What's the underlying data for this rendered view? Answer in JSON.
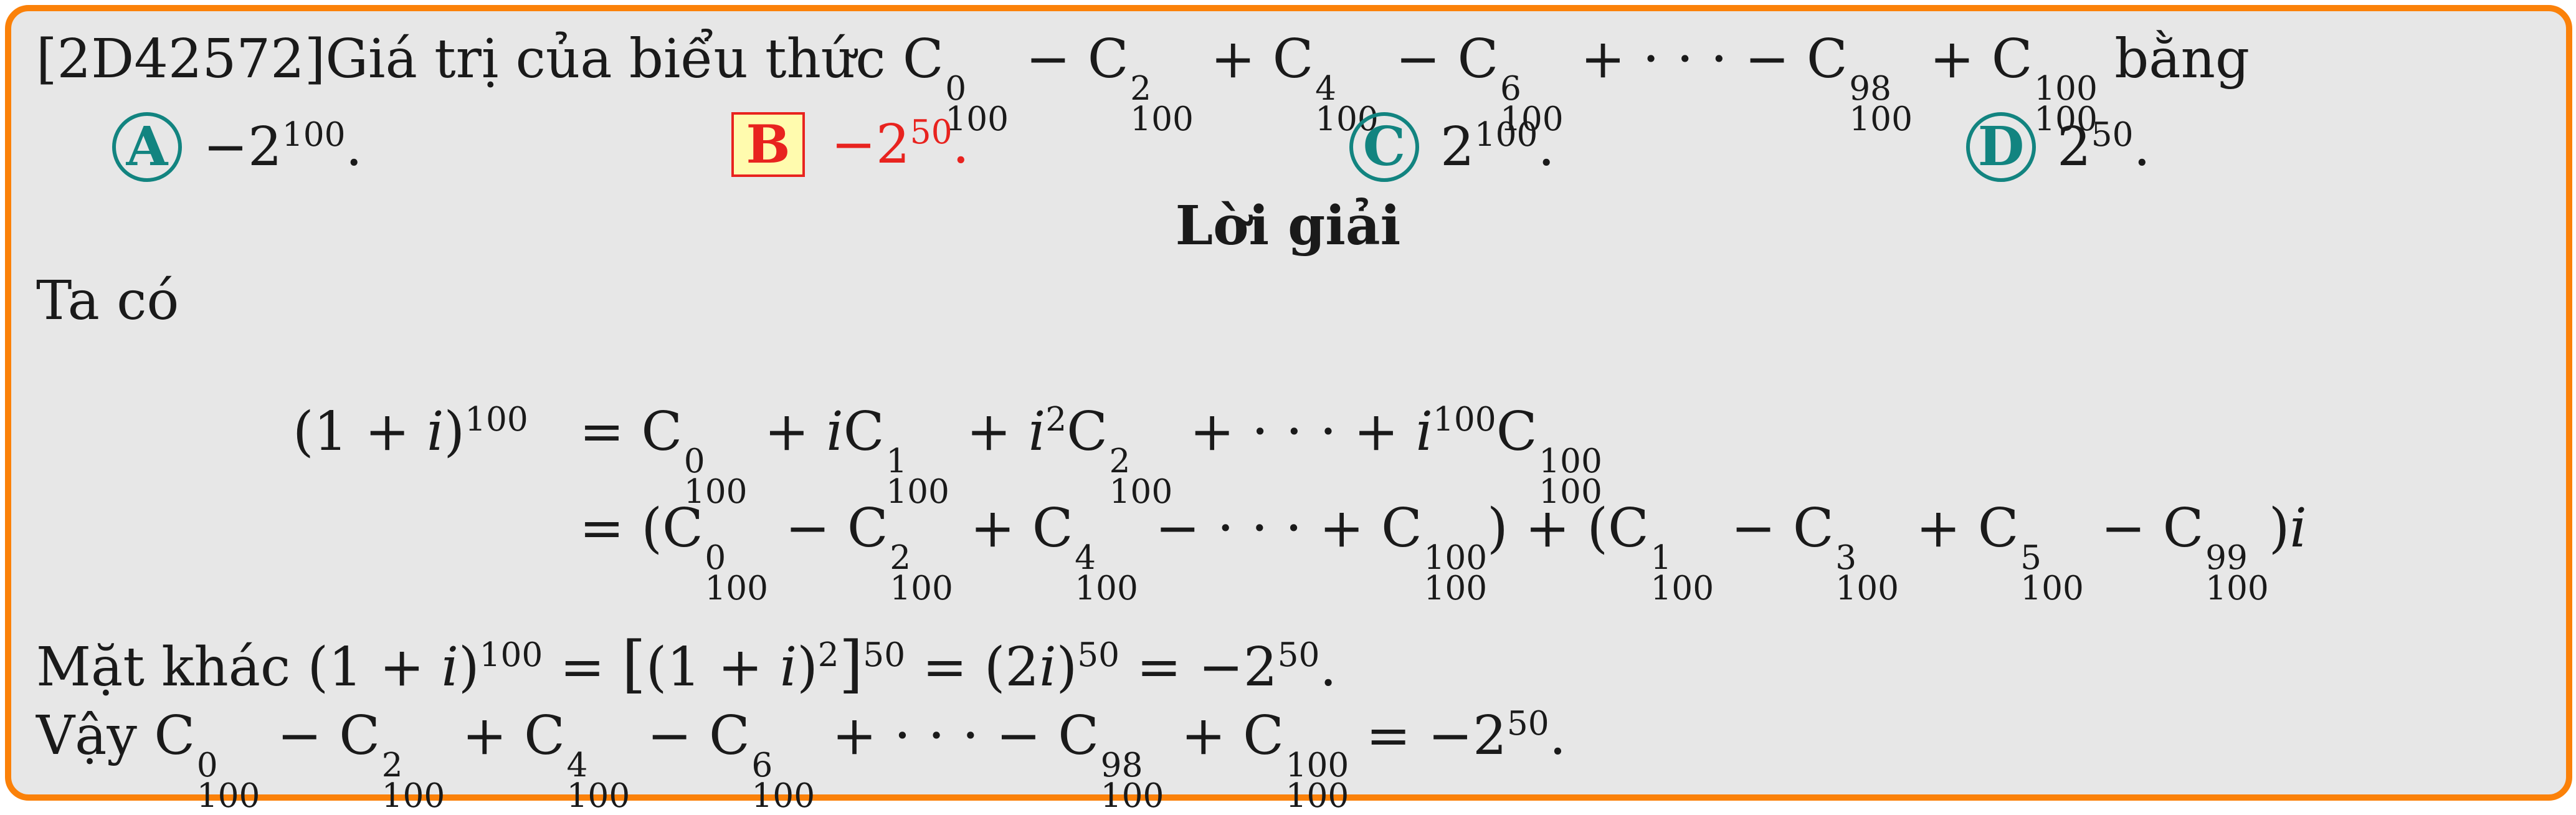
{
  "question": {
    "id": "[2D42572]",
    "text": "Giá trị của biểu thức",
    "ending": "bằng"
  },
  "options": [
    {
      "letter": "A",
      "value": "−2",
      "exp": "100",
      "correct": false
    },
    {
      "letter": "B",
      "value": "−2",
      "exp": "50",
      "correct": true
    },
    {
      "letter": "C",
      "value": "2",
      "exp": "100",
      "correct": false
    },
    {
      "letter": "D",
      "value": "2",
      "exp": "50",
      "correct": false
    }
  ],
  "solution": {
    "title": "Lời giải",
    "intro": "Ta có",
    "mat_khac": "Mặt khác",
    "vay": "Vậy"
  },
  "colors": {
    "border": "#fb8109",
    "background": "#e7e7e7",
    "option_circle": "#128480",
    "correct": "#e8231f",
    "correct_fill": "#fffbae"
  }
}
